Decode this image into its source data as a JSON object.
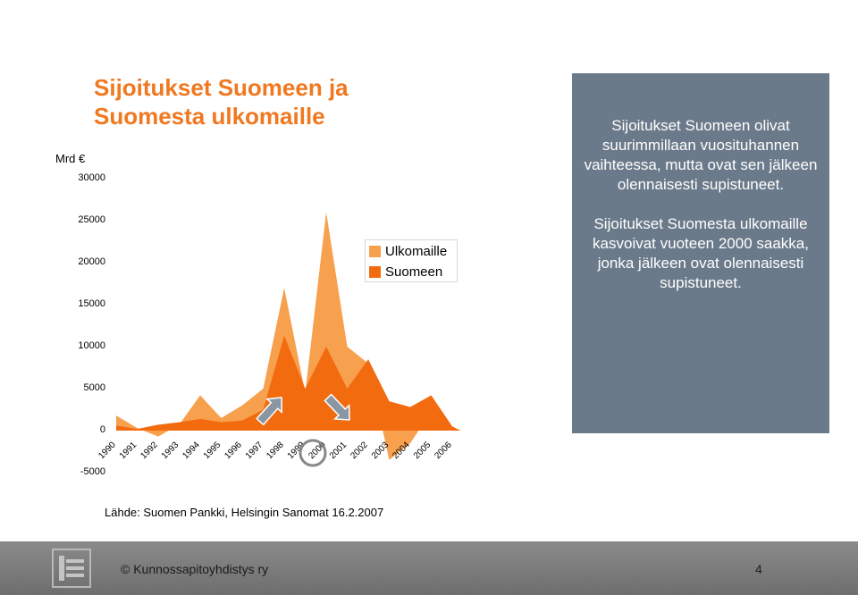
{
  "slide": {
    "title_line1": "Sijoitukset Suomeen ja",
    "title_line2": "Suomesta ulkomaille",
    "unit": "Mrd €",
    "callout_p1": "Sijoitukset Suomeen olivat suurimmillaan vuosituhannen vaihteessa, mutta ovat sen jälkeen olennaisesti supistuneet.",
    "callout_p2": "Sijoitukset Suomesta ulkomaille kasvoivat vuoteen 2000 saakka, jonka jälkeen ovat olennaisesti supistuneet.",
    "source": "Lähde: Suomen Pankki, Helsingin Sanomat 16.2.2007",
    "footer": "© Kunnossapitoyhdistys ry",
    "page": "4"
  },
  "colors": {
    "title": "#f07820",
    "ulkomaille": "#f7a04e",
    "suomeen": "#f26b0f",
    "callout_bg": "#6b7a8a",
    "arrow": "#8a96a3"
  },
  "chart_data": {
    "type": "area",
    "x": [
      "1990",
      "1991",
      "1992",
      "1993",
      "1994",
      "1995",
      "1996",
      "1997",
      "1998",
      "1999",
      "2000",
      "2001",
      "2002",
      "2003",
      "2004",
      "2005",
      "2006"
    ],
    "yticks": [
      "-5000",
      "0",
      "5000",
      "10000",
      "15000",
      "20000",
      "25000",
      "30000"
    ],
    "ylim": [
      -5000,
      30000
    ],
    "legend_placement": "center",
    "series": [
      {
        "name": "Ulkomaille",
        "color": "#f7a04e",
        "values": [
          1800,
          300,
          -700,
          700,
          4200,
          1500,
          3000,
          5000,
          17000,
          4500,
          26000,
          10000,
          8000,
          -3500,
          -1500,
          null,
          null
        ]
      },
      {
        "name": "Suomeen",
        "color": "#f26b0f",
        "values": [
          600,
          200,
          700,
          1000,
          1400,
          1000,
          1200,
          2500,
          11300,
          5000,
          10000,
          5000,
          8500,
          3500,
          2800,
          4200,
          500
        ]
      }
    ]
  }
}
